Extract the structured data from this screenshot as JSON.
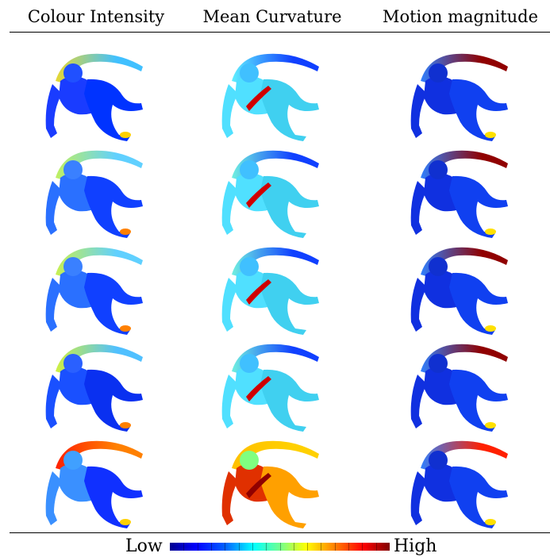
{
  "columns": [
    {
      "title": "Colour Intensity"
    },
    {
      "title": "Mean Curvature"
    },
    {
      "title": "Motion magnitude"
    }
  ],
  "rows": 5,
  "legend": {
    "low_label": "Low",
    "high_label": "High",
    "colormap": "jet",
    "colors": [
      "#00008f",
      "#0000ff",
      "#0060ff",
      "#00ffff",
      "#70ff90",
      "#ffff00",
      "#ff8000",
      "#ff0000",
      "#800000"
    ]
  }
}
